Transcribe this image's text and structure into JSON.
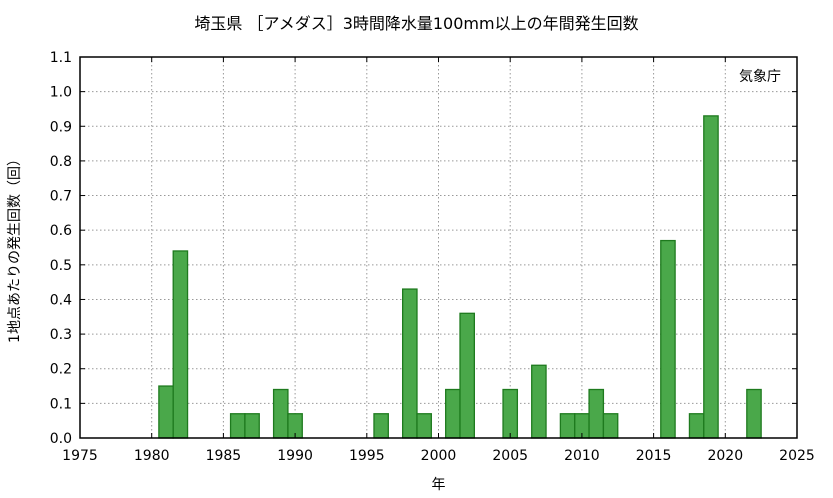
{
  "chart_data": {
    "type": "bar",
    "title": "埼玉県 ［アメダス］3時間降水量100mm以上の年間発生回数",
    "xlabel": "年",
    "ylabel": "1地点あたりの発生回数（回）",
    "annotation": "気象庁",
    "xlim": [
      1975,
      2025
    ],
    "ylim": [
      0.0,
      1.1
    ],
    "x_ticks": [
      "1975",
      "1980",
      "1985",
      "1990",
      "1995",
      "2000",
      "2005",
      "2010",
      "2015",
      "2020",
      "2025"
    ],
    "y_ticks": [
      "0.0",
      "0.1",
      "0.2",
      "0.3",
      "0.4",
      "0.5",
      "0.6",
      "0.7",
      "0.8",
      "0.9",
      "1.0",
      "1.1"
    ],
    "grid": true,
    "bar_color": "#4aa84a",
    "bar_edge_color": "#1e7a1e",
    "x": [
      1981,
      1982,
      1986,
      1987,
      1989,
      1990,
      1996,
      1998,
      1999,
      2001,
      2002,
      2005,
      2007,
      2009,
      2010,
      2011,
      2012,
      2016,
      2018,
      2019,
      2022
    ],
    "values": [
      0.15,
      0.54,
      0.07,
      0.07,
      0.14,
      0.07,
      0.07,
      0.43,
      0.07,
      0.14,
      0.36,
      0.14,
      0.21,
      0.07,
      0.07,
      0.14,
      0.07,
      0.57,
      0.07,
      0.93,
      0.14
    ]
  }
}
